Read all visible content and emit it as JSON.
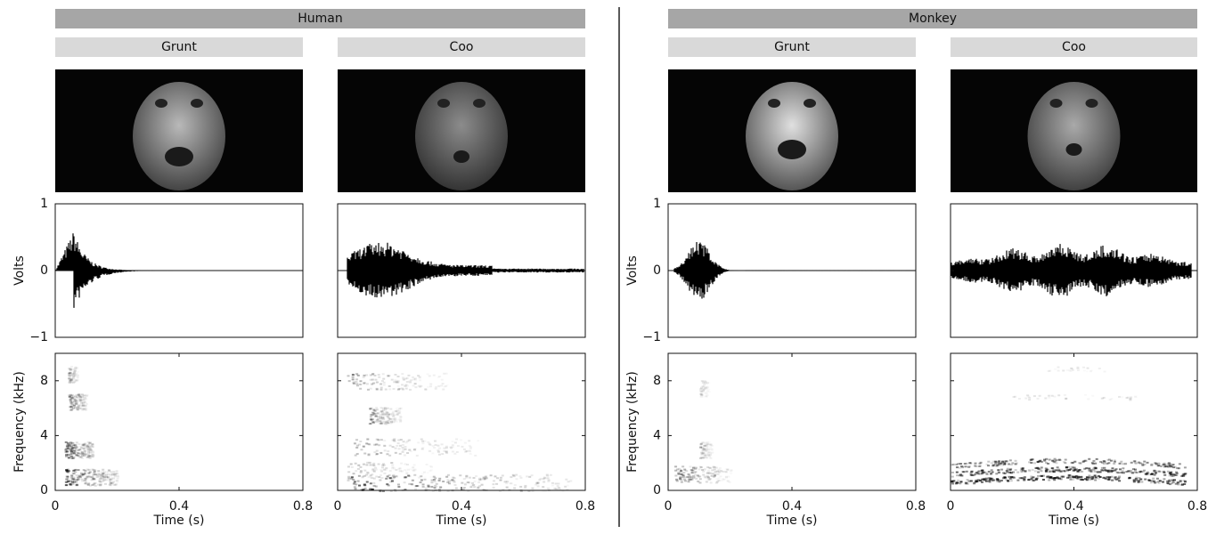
{
  "groups": [
    {
      "title": "Human",
      "panels": [
        {
          "title": "Grunt"
        },
        {
          "title": "Coo"
        }
      ]
    },
    {
      "title": "Monkey",
      "panels": [
        {
          "title": "Grunt"
        },
        {
          "title": "Coo"
        }
      ]
    }
  ],
  "waveform_axis": {
    "label": "Volts",
    "ylim": [
      -1,
      1
    ],
    "yticks": [
      {
        "value": -1,
        "label": "−1"
      },
      0,
      1
    ]
  },
  "spectrogram_axis": {
    "label": "Frequency (kHz)",
    "ylim": [
      0,
      10
    ],
    "yticks": [
      0,
      4,
      8
    ]
  },
  "time_axis": {
    "label": "Time (s)",
    "xlim": [
      0,
      0.8
    ],
    "xticks": [
      0,
      0.4,
      0.8
    ]
  }
}
